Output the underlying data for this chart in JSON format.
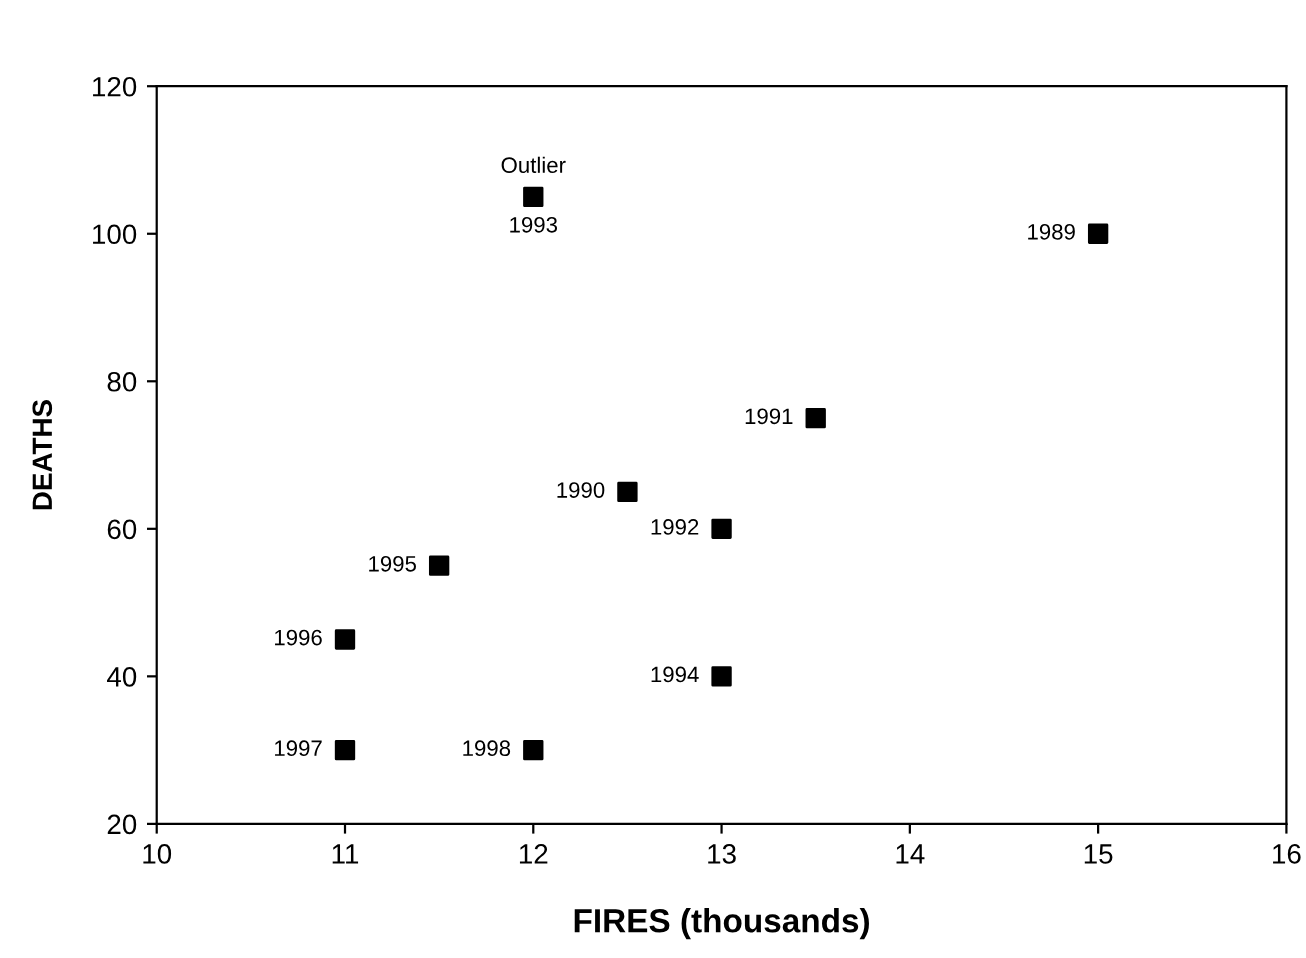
{
  "chart_data": {
    "type": "scatter",
    "xlabel": "FIRES (thousands)",
    "ylabel": "DEATHS",
    "marker": "square",
    "x": [
      15,
      12.5,
      13.5,
      13,
      12,
      13,
      11.5,
      11,
      11,
      12
    ],
    "series": [
      {
        "color": "#000000",
        "values": [
          100,
          65,
          75,
          60,
          105,
          40,
          55,
          45,
          30,
          30
        ]
      }
    ],
    "xlim": [
      10,
      16
    ],
    "xticks": [
      10,
      11,
      12,
      13,
      14,
      15,
      16
    ],
    "ylim": [
      20,
      120
    ],
    "yticks": [
      20,
      40,
      60,
      80,
      100,
      120
    ],
    "grid": false,
    "legend": false,
    "annotations": [
      {
        "text": "1989",
        "x": 15,
        "y": 100
      },
      {
        "text": "1990",
        "x": 12.5,
        "y": 65
      },
      {
        "text": "1991",
        "x": 13.5,
        "y": 75
      },
      {
        "text": "1992",
        "x": 13,
        "y": 60
      },
      {
        "text": "Outlier",
        "x": 12,
        "y": 105
      },
      {
        "text": "1993",
        "x": 12,
        "y": 105
      },
      {
        "text": "1994",
        "x": 13,
        "y": 40
      },
      {
        "text": "1995",
        "x": 11.5,
        "y": 55
      },
      {
        "text": "1996",
        "x": 11,
        "y": 45
      },
      {
        "text": "1997",
        "x": 11,
        "y": 30
      },
      {
        "text": "1998",
        "x": 12,
        "y": 30
      }
    ]
  }
}
